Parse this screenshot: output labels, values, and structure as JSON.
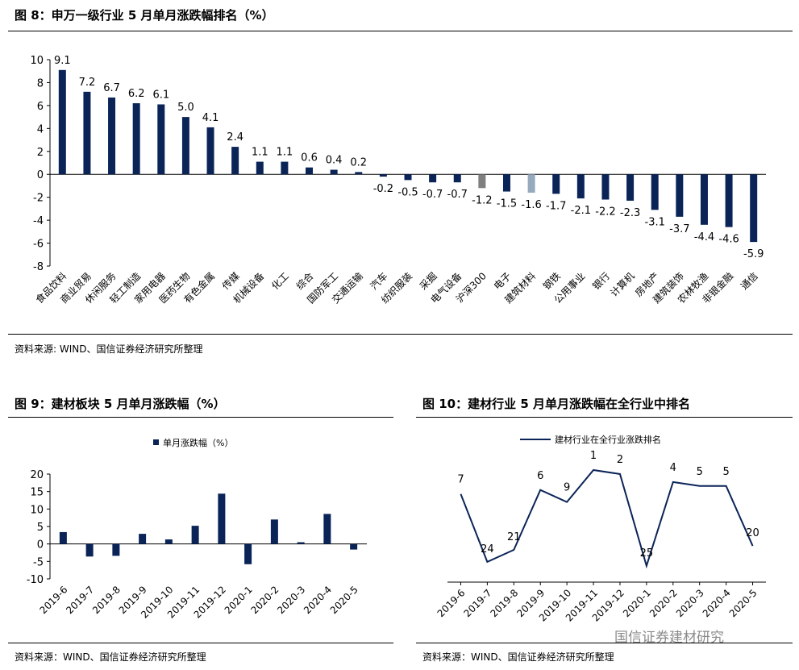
{
  "fig8": {
    "title": "图 8：申万一级行业 5 月单月涨跌幅排名（%）",
    "source": "资料来源: WIND、国信证券经济研究所整理"
  },
  "fig9": {
    "title": "图 9：建材板块 5 月单月涨跌幅（%）",
    "source": "资料来源：WIND、国信证券经济研究所整理"
  },
  "fig10": {
    "title": "图 10：建材行业 5 月单月涨跌幅在全行业中排名",
    "source": "资料来源：WIND、国信证券经济研究所整理"
  },
  "watermark": "国信证券建材研究",
  "colors": {
    "navy": "#0b2458",
    "grey": "#7f7f7f",
    "light": "#97a9bd"
  },
  "chart_data": [
    {
      "type": "bar",
      "title": "",
      "categories": [
        "食品饮料",
        "商业贸易",
        "休闲服务",
        "轻工制造",
        "家用电器",
        "医药生物",
        "有色金属",
        "传媒",
        "机械设备",
        "化工",
        "综合",
        "国防军工",
        "交通运输",
        "汽车",
        "纺织服装",
        "采掘",
        "电气设备",
        "沪深300",
        "电子",
        "建筑材料",
        "钢铁",
        "公用事业",
        "银行",
        "计算机",
        "房地产",
        "建筑装饰",
        "农林牧渔",
        "非银金融",
        "通信"
      ],
      "values": [
        9.1,
        7.2,
        6.7,
        6.2,
        6.1,
        5.0,
        4.1,
        2.4,
        1.1,
        1.1,
        0.6,
        0.4,
        0.2,
        -0.2,
        -0.5,
        -0.7,
        -0.7,
        -1.2,
        -1.5,
        -1.6,
        -1.7,
        -2.1,
        -2.2,
        -2.3,
        -3.1,
        -3.7,
        -4.4,
        -4.6,
        -5.9
      ],
      "value_labels": [
        "9.1",
        "7.2",
        "6.7",
        "6.2",
        "6.1",
        "5.0",
        "4.1",
        "2.4",
        "1.1",
        "1.1",
        "0.6",
        "0.4",
        "0.2",
        "-0.2",
        "-0.5",
        "-0.7",
        "-0.7",
        "-1.2",
        "-1.5",
        "-1.6",
        "-1.7",
        "-2.1",
        "-2.2",
        "-2.3",
        "-3.1",
        "-3.7",
        "-4.4",
        "-4.6",
        "-5.9"
      ],
      "highlight": {
        "沪深300": "grey",
        "建筑材料": "light"
      },
      "ylim": [
        -8,
        10
      ],
      "yticks": [
        -8,
        -6,
        -4,
        -2,
        0,
        2,
        4,
        6,
        8,
        10
      ],
      "ytick_labels": [
        "-8",
        "-6",
        "-4",
        "-2",
        "0",
        "2",
        "4",
        "6",
        "8",
        "10"
      ],
      "grid": false
    },
    {
      "type": "bar",
      "title": "",
      "legend": "单月涨跌幅（%）",
      "legend_position": "top",
      "categories": [
        "2019-6",
        "2019-7",
        "2019-8",
        "2019-9",
        "2019-10",
        "2019-11",
        "2019-12",
        "2020-1",
        "2020-2",
        "2020-3",
        "2020-4",
        "2020-5"
      ],
      "values": [
        3.4,
        -3.6,
        -3.4,
        2.9,
        1.3,
        5.2,
        14.4,
        -5.8,
        7.0,
        0.5,
        8.6,
        -1.6
      ],
      "ylim": [
        -10,
        20
      ],
      "yticks": [
        -10,
        -5,
        0,
        5,
        10,
        15,
        20
      ],
      "ytick_labels": [
        "-10",
        "-5",
        "0",
        "5",
        "10",
        "15",
        "20"
      ],
      "grid": false
    },
    {
      "type": "line",
      "title": "",
      "legend": "建材行业在全行业涨跌排名",
      "legend_position": "top",
      "categories": [
        "2019-6",
        "2019-7",
        "2019-8",
        "2019-9",
        "2019-10",
        "2019-11",
        "2019-12",
        "2020-1",
        "2020-2",
        "2020-3",
        "2020-4",
        "2020-5"
      ],
      "values": [
        7,
        24,
        21,
        6,
        9,
        1,
        2,
        25,
        4,
        5,
        5,
        20
      ],
      "value_labels": [
        "7",
        "24",
        "21",
        "6",
        "9",
        "1",
        "2",
        "25",
        "4",
        "5",
        "5",
        "20"
      ],
      "y_inverted": true,
      "ylim": [
        0,
        28
      ],
      "grid": false
    }
  ]
}
